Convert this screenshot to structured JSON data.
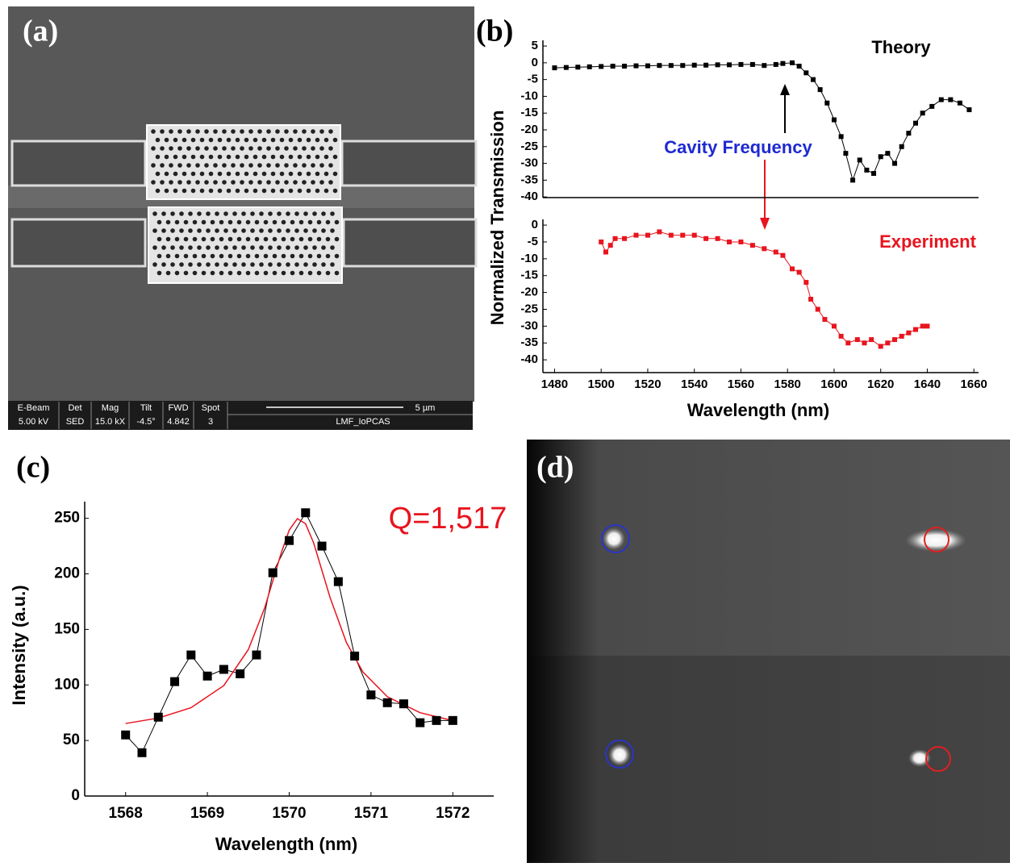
{
  "panel_labels": [
    "(a)",
    "(b)",
    "(c)",
    "(d)"
  ],
  "sem_info": {
    "headers": [
      "E-Beam",
      "Det",
      "Mag",
      "Tilt",
      "FWD",
      "Spot"
    ],
    "values": [
      "5.00 kV",
      "SED",
      "15.0 kX",
      "-4.5°",
      "4.842",
      "3"
    ],
    "scale": "5 µm",
    "facility": "LMF_IoPCAS"
  },
  "chart_data": [
    {
      "type": "line",
      "marker": "square",
      "color": "#000000",
      "x": [
        1480,
        1485,
        1490,
        1495,
        1500,
        1505,
        1510,
        1515,
        1520,
        1525,
        1530,
        1535,
        1540,
        1545,
        1550,
        1555,
        1560,
        1565,
        1570,
        1575,
        1578,
        1582,
        1585,
        1588,
        1591,
        1594,
        1597,
        1600,
        1603,
        1605,
        1608,
        1611,
        1614,
        1617,
        1620,
        1623,
        1626,
        1629,
        1632,
        1635,
        1638,
        1642,
        1646,
        1650,
        1654,
        1658
      ],
      "values": [
        -1.5,
        -1.4,
        -1.3,
        -1.2,
        -1.1,
        -1,
        -1,
        -0.9,
        -0.9,
        -0.8,
        -0.8,
        -0.8,
        -0.7,
        -0.7,
        -0.6,
        -0.6,
        -0.5,
        -0.5,
        -0.8,
        -0.5,
        -0.2,
        0,
        -1,
        -3,
        -5,
        -8,
        -12,
        -17,
        -22,
        -27,
        -35,
        -29,
        -32,
        -33,
        -28,
        -27,
        -30,
        -25,
        -21,
        -18,
        -15,
        -13,
        -11,
        -11,
        -12,
        -14
      ],
      "xlim": [
        1475,
        1662
      ],
      "ylim": [
        -40.2,
        6.7
      ],
      "yticks": [
        5,
        0,
        -5,
        -10,
        -15,
        -20,
        -25,
        -30,
        -35,
        -40
      ],
      "annotations": [
        "Theory",
        "Cavity Frequency"
      ]
    },
    {
      "type": "line",
      "marker": "square",
      "color": "#e8141e",
      "x": [
        1500,
        1502,
        1504,
        1506,
        1510,
        1515,
        1520,
        1525,
        1530,
        1535,
        1540,
        1545,
        1550,
        1555,
        1560,
        1565,
        1570,
        1575,
        1578,
        1582,
        1585,
        1588,
        1590,
        1593,
        1596,
        1600,
        1603,
        1606,
        1610,
        1613,
        1616,
        1620,
        1623,
        1626,
        1629,
        1632,
        1635,
        1638,
        1640
      ],
      "values": [
        -5,
        -8,
        -6,
        -4,
        -4,
        -3,
        -3,
        -2,
        -3,
        -3,
        -3,
        -4,
        -4,
        -5,
        -5,
        -6,
        -7,
        -8,
        -9,
        -13,
        -14,
        -17,
        -22,
        -25,
        -28,
        -30,
        -33,
        -35,
        -34,
        -35,
        -34,
        -36,
        -35,
        -34,
        -33,
        -32,
        -31,
        -30,
        -30
      ],
      "xlim": [
        1475,
        1662
      ],
      "ylim": [
        -43.8,
        1.7
      ],
      "yticks": [
        0,
        -5,
        -10,
        -15,
        -20,
        -25,
        -30,
        -35,
        -40
      ],
      "xticks": [
        1480,
        1500,
        1520,
        1540,
        1560,
        1580,
        1600,
        1620,
        1640,
        1660
      ],
      "x_label": "Wavelength (nm)",
      "y_label": "Normalized Transmission",
      "annotations": [
        "Experiment"
      ]
    },
    {
      "type": "line",
      "marker": "square",
      "color": "#000000",
      "x": [
        1568,
        1568.2,
        1568.4,
        1568.6,
        1568.8,
        1569,
        1569.2,
        1569.4,
        1569.6,
        1569.8,
        1570,
        1570.2,
        1570.4,
        1570.6,
        1570.8,
        1571,
        1571.2,
        1571.4,
        1571.6,
        1571.8,
        1572
      ],
      "values": [
        55,
        39,
        71,
        103,
        127,
        108,
        114,
        110,
        127,
        201,
        230,
        255,
        225,
        193,
        126,
        91,
        84,
        83,
        66,
        68,
        68
      ],
      "fit": {
        "color": "#e8141e",
        "x": [
          1568,
          1568.4,
          1568.8,
          1569.2,
          1569.5,
          1569.7,
          1569.9,
          1570,
          1570.1,
          1570.2,
          1570.3,
          1570.5,
          1570.7,
          1570.9,
          1571.2,
          1571.6,
          1572
        ],
        "values": [
          65.3,
          70.2,
          79.5,
          99.4,
          131.8,
          169.3,
          218.3,
          239.4,
          249.7,
          245.1,
          227.6,
          178.6,
          138.1,
          111.8,
          89.4,
          75,
          67.9
        ]
      },
      "xlim": [
        1567.5,
        1572.5
      ],
      "ylim": [
        0,
        265
      ],
      "xticks": [
        1568,
        1569,
        1570,
        1571,
        1572
      ],
      "yticks": [
        0,
        50,
        100,
        150,
        200,
        250
      ],
      "x_label": "Wavelength (nm)",
      "y_label": "Intensity (a.u.)",
      "annotations": [
        "Q=1,517"
      ]
    }
  ]
}
